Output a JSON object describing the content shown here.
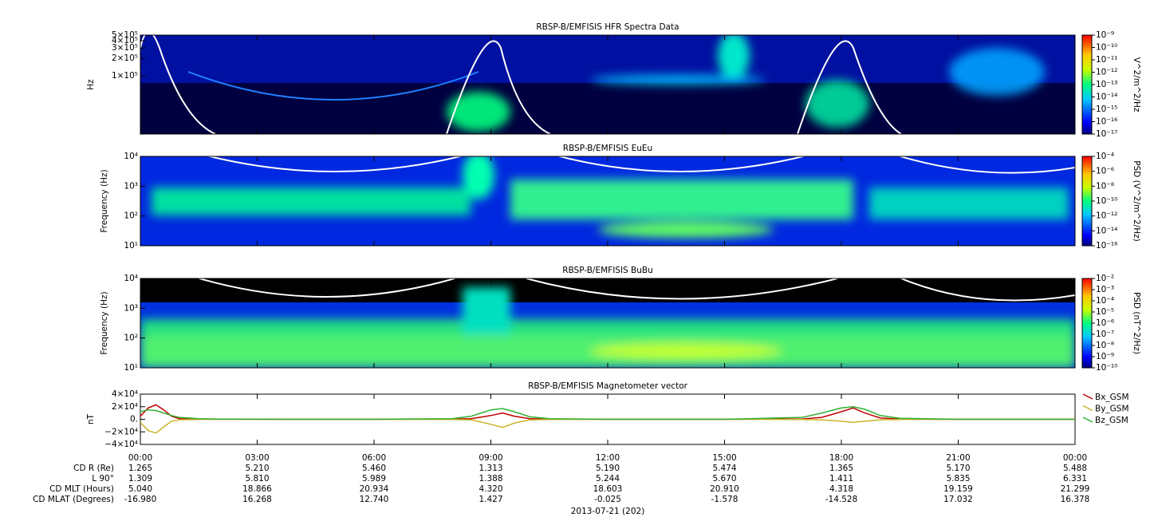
{
  "chart_data": [
    {
      "type": "spectrogram",
      "title": "RBSP-B/EMFISIS  HFR Spectra Data",
      "ylabel": "Hz",
      "log_scale": true,
      "ylim": [
        10000,
        500000
      ],
      "yticks": [
        {
          "value": 500000,
          "label": "5×10⁵"
        },
        {
          "value": 400000,
          "label": "4×10⁵"
        },
        {
          "value": 300000,
          "label": "3×10⁵"
        },
        {
          "value": 200000,
          "label": "2×10⁵"
        },
        {
          "value": 100000,
          "label": "1×10⁵"
        }
      ],
      "colorbar": {
        "label": "V^2/m^2/Hz",
        "lim": [
          1e-17,
          1e-09
        ],
        "ticks": [
          {
            "value": 1e-09,
            "label": "10⁻⁹"
          },
          {
            "value": 1e-10,
            "label": "10⁻¹⁰"
          },
          {
            "value": 1e-11,
            "label": "10⁻¹¹"
          },
          {
            "value": 1e-12,
            "label": "10⁻¹²"
          },
          {
            "value": 1e-13,
            "label": "10⁻¹³"
          },
          {
            "value": 1e-14,
            "label": "10⁻¹⁴"
          },
          {
            "value": 1e-15,
            "label": "10⁻¹⁵"
          },
          {
            "value": 1e-16,
            "label": "10⁻¹⁶"
          },
          {
            "value": 1e-17,
            "label": "10⁻¹⁷"
          }
        ]
      }
    },
    {
      "type": "spectrogram",
      "title": "RBSP-B/EMFISIS  EuEu",
      "ylabel": "Frequency (Hz)",
      "log_scale": true,
      "ylim": [
        10,
        10000
      ],
      "yticks": [
        {
          "value": 10000,
          "label": "10⁴"
        },
        {
          "value": 1000,
          "label": "10³"
        },
        {
          "value": 100,
          "label": "10²"
        },
        {
          "value": 10,
          "label": "10¹"
        }
      ],
      "colorbar": {
        "label": "PSD (V^2/m^2/Hz)",
        "lim": [
          1e-16,
          0.0001
        ],
        "ticks": [
          {
            "value": 0.0001,
            "label": "10⁻⁴"
          },
          {
            "value": 1e-06,
            "label": "10⁻⁶"
          },
          {
            "value": 1e-08,
            "label": "10⁻⁸"
          },
          {
            "value": 1e-10,
            "label": "10⁻¹⁰"
          },
          {
            "value": 1e-12,
            "label": "10⁻¹²"
          },
          {
            "value": 1e-14,
            "label": "10⁻¹⁴"
          },
          {
            "value": 1e-16,
            "label": "10⁻¹⁶"
          }
        ]
      }
    },
    {
      "type": "spectrogram",
      "title": "RBSP-B/EMFISIS  BuBu",
      "ylabel": "Frequency (Hz)",
      "log_scale": true,
      "ylim": [
        10,
        10000
      ],
      "yticks": [
        {
          "value": 10000,
          "label": "10⁴"
        },
        {
          "value": 1000,
          "label": "10³"
        },
        {
          "value": 100,
          "label": "10²"
        },
        {
          "value": 10,
          "label": "10¹"
        }
      ],
      "colorbar": {
        "label": "PSD (nT^2/Hz)",
        "lim": [
          1e-10,
          0.01
        ],
        "ticks": [
          {
            "value": 0.01,
            "label": "10⁻²"
          },
          {
            "value": 0.001,
            "label": "10⁻³"
          },
          {
            "value": 0.0001,
            "label": "10⁻⁴"
          },
          {
            "value": 1e-05,
            "label": "10⁻⁵"
          },
          {
            "value": 1e-06,
            "label": "10⁻⁶"
          },
          {
            "value": 1e-07,
            "label": "10⁻⁷"
          },
          {
            "value": 1e-08,
            "label": "10⁻⁸"
          },
          {
            "value": 1e-09,
            "label": "10⁻⁹"
          },
          {
            "value": 1e-10,
            "label": "10⁻¹⁰"
          }
        ]
      }
    },
    {
      "type": "line",
      "title": "RBSP-B/EMFISIS  Magnetometer vector",
      "ylabel": "nT",
      "ylim": [
        -40000,
        40000
      ],
      "yticks": [
        {
          "value": 40000,
          "label": "4×10⁴"
        },
        {
          "value": 20000,
          "label": "2×10⁴"
        },
        {
          "value": 0,
          "label": "0."
        },
        {
          "value": -20000,
          "label": "−2×10⁴"
        },
        {
          "value": -40000,
          "label": "−4×10⁴"
        }
      ],
      "x": [
        0,
        0.2,
        0.4,
        0.6,
        0.8,
        1,
        1.5,
        2,
        4,
        6,
        8,
        8.5,
        9,
        9.3,
        9.6,
        10,
        10.5,
        12,
        15,
        17,
        17.5,
        18,
        18.3,
        18.6,
        19,
        19.5,
        21,
        24
      ],
      "series": [
        {
          "name": "Bx_GSM",
          "color": "#c00000",
          "values": [
            5000,
            18000,
            23000,
            15000,
            5000,
            1000,
            300,
            100,
            0,
            0,
            200,
            1000,
            6000,
            10000,
            5000,
            1000,
            200,
            0,
            0,
            500,
            3000,
            12000,
            18000,
            10000,
            2000,
            300,
            0,
            0
          ]
        },
        {
          "name": "By_GSM",
          "color": "#c8b428",
          "values": [
            -5000,
            -18000,
            -22000,
            -12000,
            -3000,
            -800,
            -200,
            0,
            0,
            0,
            -200,
            -1000,
            -8000,
            -13000,
            -6000,
            -1000,
            -200,
            0,
            0,
            -200,
            -1000,
            -3000,
            -5000,
            -3000,
            -1000,
            -200,
            0,
            0
          ]
        },
        {
          "name": "Bz_GSM",
          "color": "#30b030",
          "values": [
            12000,
            15000,
            14000,
            10000,
            6000,
            3000,
            1000,
            400,
            0,
            0,
            1000,
            5000,
            15000,
            17000,
            12000,
            4000,
            1000,
            0,
            0,
            3000,
            10000,
            18000,
            20000,
            16000,
            6000,
            1500,
            0,
            0
          ]
        }
      ]
    }
  ],
  "xaxis": {
    "xlim": [
      0,
      24
    ],
    "xticks": [
      {
        "value": 0,
        "label": "00:00"
      },
      {
        "value": 3,
        "label": "03:00"
      },
      {
        "value": 6,
        "label": "06:00"
      },
      {
        "value": 9,
        "label": "09:00"
      },
      {
        "value": 12,
        "label": "12:00"
      },
      {
        "value": 15,
        "label": "15:00"
      },
      {
        "value": 18,
        "label": "18:00"
      },
      {
        "value": 21,
        "label": "21:00"
      },
      {
        "value": 24,
        "label": "00:00"
      }
    ],
    "date": "2013-07-21 (202)"
  },
  "ephemeris": [
    {
      "label": "CD R (Re)",
      "values": [
        "1.265",
        "5.210",
        "5.460",
        "1.313",
        "5.190",
        "5.474",
        "1.365",
        "5.170",
        "5.488"
      ]
    },
    {
      "label": "L 90°",
      "values": [
        "1.309",
        "5.810",
        "5.989",
        "1.388",
        "5.244",
        "5.670",
        "1.411",
        "5.835",
        "6.331"
      ]
    },
    {
      "label": "CD MLT (Hours)",
      "values": [
        "5.040",
        "18.866",
        "20.934",
        "4.320",
        "18.603",
        "20.910",
        "4.318",
        "19.159",
        "21.299"
      ]
    },
    {
      "label": "CD MLAT (Degrees)",
      "values": [
        "-16.980",
        "16.268",
        "12.740",
        "1.427",
        "-0.025",
        "-1.578",
        "-14.528",
        "17.032",
        "16.378"
      ]
    }
  ]
}
